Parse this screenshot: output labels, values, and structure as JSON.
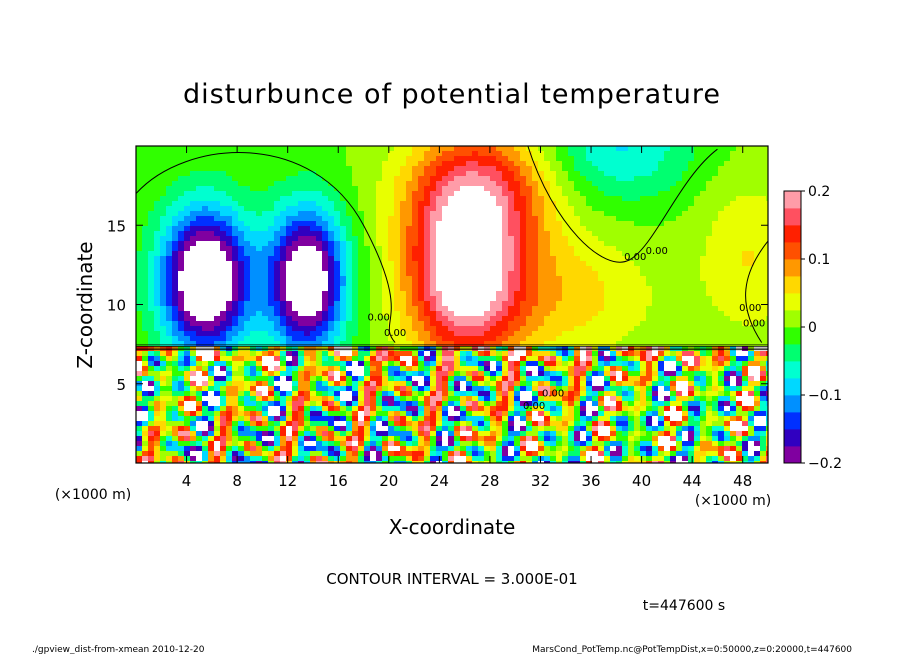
{
  "chart_data": {
    "type": "heatmap",
    "title": "disturbunce of potential temperature",
    "xlabel": "X-coordinate",
    "ylabel": "Z-coordinate",
    "x_unit_label_left": "(×1000 m)",
    "x_unit_label_right": "(×1000 m)",
    "xlim": [
      0,
      50
    ],
    "ylim": [
      0,
      20
    ],
    "x_ticks": [
      4,
      8,
      12,
      16,
      20,
      24,
      28,
      32,
      36,
      40,
      44,
      48
    ],
    "y_ticks": [
      5,
      10,
      15
    ],
    "colorbar": {
      "range": [
        -0.2,
        0.2
      ],
      "labels": [
        "0.2",
        "0.1",
        "0",
        "−0.1",
        "−0.2"
      ],
      "label_values": [
        0.2,
        0.1,
        0,
        -0.1,
        -0.2
      ],
      "colors": [
        "#8000a0",
        "#3000c0",
        "#0030ff",
        "#0090ff",
        "#00d8ff",
        "#00ffd0",
        "#00ff70",
        "#30ff00",
        "#a0ff00",
        "#e8ff00",
        "#ffd800",
        "#ff9800",
        "#ff5000",
        "#ff2000",
        "#ff5060",
        "#ff9ca8"
      ]
    },
    "contour_label": "0.00",
    "fields": {
      "background": 0.0,
      "blobs": [
        {
          "x": 5.5,
          "z": 11.5,
          "sx": 3.5,
          "sz": 4.5,
          "value": -0.28
        },
        {
          "x": 13.5,
          "z": 11.5,
          "sx": 3.0,
          "sz": 4.5,
          "value": -0.26
        },
        {
          "x": 26.0,
          "z": 12.0,
          "sx": 4.5,
          "sz": 5.5,
          "value": 0.24
        },
        {
          "x": 27.5,
          "z": 17.5,
          "sx": 6.0,
          "sz": 4.0,
          "value": 0.12
        },
        {
          "x": 38.0,
          "z": 20.0,
          "sx": 6.0,
          "sz": 3.5,
          "value": -0.08
        },
        {
          "x": 34.0,
          "z": 10.5,
          "sx": 7.0,
          "sz": 4.0,
          "value": 0.06
        },
        {
          "x": 48.5,
          "z": 13.0,
          "sx": 4.0,
          "sz": 5.0,
          "value": 0.05
        }
      ],
      "inversion_level_z": 7.3,
      "lower_layer_amplitude": 0.3
    }
  },
  "annotations": {
    "contour_interval": "CONTOUR INTERVAL = 3.000E-01",
    "time": "t=447600 s",
    "footer_left": "./gpview_dist-from-xmean  2010-12-20",
    "footer_right": "MarsCond_PotTemp.nc@PotTempDist,x=0:50000,z=0:20000,t=447600"
  }
}
